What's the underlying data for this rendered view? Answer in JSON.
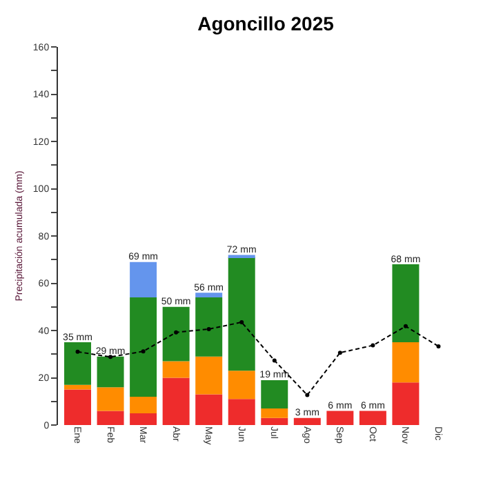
{
  "chart_data": {
    "type": "bar",
    "title": "Agoncillo 2025",
    "ylabel": "Precipitación acumulada (mm)",
    "categories": [
      "Ene",
      "Feb",
      "Mar",
      "Abr",
      "May",
      "Jun",
      "Jul",
      "Ago",
      "Sep",
      "Oct",
      "Nov",
      "Dic"
    ],
    "stacked": true,
    "series": [
      {
        "color": "#ee2c2c",
        "values": [
          15,
          6,
          5,
          20,
          13,
          11,
          3,
          3,
          6,
          6,
          18,
          null
        ]
      },
      {
        "color": "#ff8c00",
        "values": [
          2,
          10,
          7,
          7,
          16,
          12,
          4,
          null,
          null,
          null,
          17,
          null
        ]
      },
      {
        "color": "#228b22",
        "values": [
          18,
          13,
          42,
          23,
          25,
          48,
          12,
          null,
          null,
          null,
          33,
          null
        ]
      },
      {
        "color": "#6495ed",
        "values": [
          null,
          null,
          15,
          null,
          2,
          1,
          null,
          null,
          null,
          null,
          null,
          null
        ]
      },
      {
        "type": "line",
        "color": "#000000",
        "line_style": "dashed",
        "marker": "circle",
        "values": [
          31,
          28.8,
          31.2,
          39.2,
          40.6,
          43.5,
          27.3,
          12.7,
          30.6,
          33.7,
          41.8,
          33.3
        ]
      }
    ],
    "totals": [
      "35 mm",
      "29 mm",
      "69 mm",
      "50 mm",
      "56 mm",
      "72 mm",
      "19 mm",
      "3 mm",
      "6 mm",
      "6 mm",
      "68 mm",
      null
    ],
    "ylim": [
      0,
      160
    ],
    "yticks": [
      0,
      {
        "value": 10,
        "label": null
      },
      20,
      {
        "value": 30,
        "label": null
      },
      40,
      {
        "value": 50,
        "label": null
      },
      60,
      {
        "value": 70,
        "label": null
      },
      80,
      {
        "value": 90,
        "label": null
      },
      100,
      {
        "value": 110,
        "label": null
      },
      120,
      {
        "value": 130,
        "label": null
      },
      140,
      {
        "value": 150,
        "label": null
      },
      160
    ],
    "grid": false
  }
}
